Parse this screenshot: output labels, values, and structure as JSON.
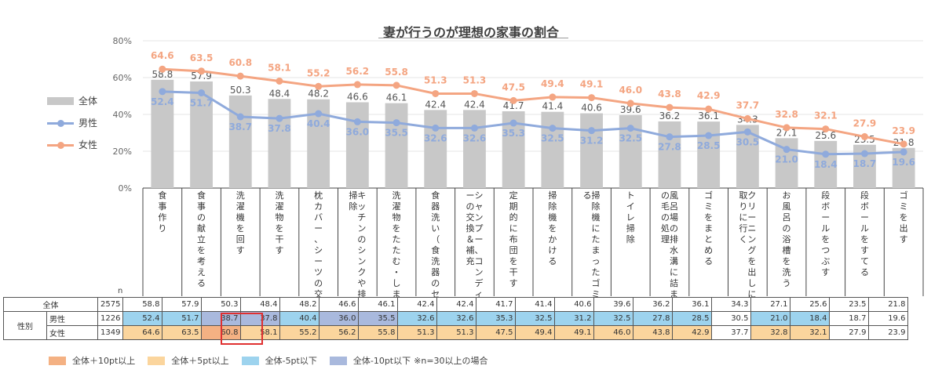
{
  "chart_data": {
    "type": "bar",
    "title": "妻が行うのが理想の家事の割合",
    "ylim": [
      0,
      80
    ],
    "yticks": [
      "0%",
      "20%",
      "40%",
      "60%",
      "80%"
    ],
    "categories": [
      "食事作り",
      "食事の献立を考える",
      "洗濯機を回す",
      "洗濯物を干す",
      "枕カバー、シーツの交換",
      "キッチンのシンクや排水溝の掃除",
      "洗濯物をたたむ・しまう",
      "食器洗い（食洗器のセット）",
      "シャンプー、コンディショナーの交換＆補充",
      "定期的に布団を干す",
      "掃除機をかける",
      "掃除機にたまったゴミを捨てる",
      "トイレ掃除",
      "風呂場の排水溝に詰まった髪の毛の処理",
      "ゴミをまとめる",
      "クリーニングを出しに行く、取りに行く",
      "お風呂の浴槽を洗う",
      "段ボールをつぶす",
      "段ボールをすてる",
      "ゴミを出す"
    ],
    "cat_labels": [
      "食\n事\n作\nり",
      "食\n事\nの\n献\n立\nを\n考\nえ\nる",
      "洗\n濯\n機\nを\n回\nす",
      "洗\n濯\n物\nを\n干\nす",
      "枕\nカ\nバ\nー\n、\nシ\nー\nツ\nの\n交\n換",
      "キ\nッ\nチ\nン\nの\nシ\nン\nク\nや\n排\n水\n溝\nの\n掃\n除",
      "洗\n濯\n物\nを\nた\nた\nむ\n・\nし\nま\nう",
      "食\n器\n洗\nい\n（\n食\n洗\n器\nの\nセ\nッ\nト\n）",
      "シ\nャ\nン\nプ\nー\n、\nコ\nン\nデ\nィ\nシ\nョ\nナ\nー\nの\n交\n換\n＆\n補\n充",
      "定\n期\n的\nに\n布\n団\nを\n干\nす",
      "掃\n除\n機\nを\nか\nけ\nる",
      "掃\n除\n機\nに\nた\nま\nっ\nた\nゴ\nミ\nを\n捨\nて\nる",
      "ト\nイ\nレ\n掃\n除",
      "風\n呂\n場\nの\n排\n水\n溝\nに\n詰\nま\nっ\nた\n髪\nの\n毛\nの\n処\n理",
      "ゴ\nミ\nを\nま\nと\nめ\nる",
      "ク\nリ\nー\nニ\nン\nグ\nを\n出\nし\nに\n行\nく\n、\n取\nり\nに\n行\nく",
      "お\n風\n呂\nの\n浴\n槽\nを\n洗\nう",
      "段\nボ\nー\nル\nを\nつ\nぶ\nす",
      "段\nボ\nー\nル\nを\nす\nて\nる",
      "ゴ\nミ\nを\n出\nす"
    ],
    "series": [
      {
        "name": "全体",
        "type": "bar",
        "color": "#c8c8c8",
        "values": [
          58.8,
          57.9,
          50.3,
          48.4,
          48.2,
          46.6,
          46.1,
          42.4,
          42.4,
          41.7,
          41.4,
          40.6,
          39.6,
          36.2,
          36.1,
          34.3,
          27.1,
          25.6,
          23.5,
          21.8
        ]
      },
      {
        "name": "男性",
        "type": "line",
        "color": "#8faadc",
        "values": [
          52.4,
          51.7,
          38.7,
          37.8,
          40.4,
          36.0,
          35.5,
          32.6,
          32.6,
          35.3,
          32.5,
          31.2,
          32.5,
          27.8,
          28.5,
          30.5,
          21.0,
          18.4,
          18.7,
          19.6
        ]
      },
      {
        "name": "女性",
        "type": "line",
        "color": "#f4a582",
        "values": [
          64.6,
          63.5,
          60.8,
          58.1,
          55.2,
          56.2,
          55.8,
          51.3,
          51.3,
          47.5,
          49.4,
          49.1,
          46.0,
          43.8,
          42.9,
          37.7,
          32.8,
          32.1,
          27.9,
          23.9
        ]
      }
    ],
    "legend_position": "left",
    "grid": true
  },
  "table": {
    "n_label": "n",
    "group_label": "性別",
    "rows": [
      {
        "label": "全体",
        "n": "2575",
        "values": [
          "58.8",
          "57.9",
          "50.3",
          "48.4",
          "48.2",
          "46.6",
          "46.1",
          "42.4",
          "42.4",
          "41.7",
          "41.4",
          "40.6",
          "39.6",
          "36.2",
          "36.1",
          "34.3",
          "27.1",
          "25.6",
          "23.5",
          "21.8"
        ],
        "colors": [
          "",
          "",
          "",
          "",
          "",
          "",
          "",
          "",
          "",
          "",
          "",
          "",
          "",
          "",
          "",
          "",
          "",
          "",
          "",
          ""
        ]
      },
      {
        "label": "男性",
        "n": "1226",
        "values": [
          "52.4",
          "51.7",
          "38.7",
          "37.8",
          "40.4",
          "36.0",
          "35.5",
          "32.6",
          "32.6",
          "35.3",
          "32.5",
          "31.2",
          "32.5",
          "27.8",
          "28.5",
          "30.5",
          "21.0",
          "18.4",
          "18.7",
          "19.6"
        ],
        "colors": [
          "b",
          "b",
          "d",
          "d",
          "b",
          "d",
          "d",
          "b",
          "b",
          "b",
          "b",
          "b",
          "b",
          "b",
          "b",
          "",
          "b",
          "b",
          "",
          ""
        ]
      },
      {
        "label": "女性",
        "n": "1349",
        "values": [
          "64.6",
          "63.5",
          "60.8",
          "58.1",
          "55.2",
          "56.2",
          "55.8",
          "51.3",
          "51.3",
          "47.5",
          "49.4",
          "49.1",
          "46.0",
          "43.8",
          "42.9",
          "37.7",
          "32.8",
          "32.1",
          "27.9",
          "23.9"
        ],
        "colors": [
          "y",
          "y",
          "o",
          "y",
          "y",
          "y",
          "y",
          "y",
          "y",
          "y",
          "y",
          "y",
          "y",
          "y",
          "y",
          "",
          "y",
          "y",
          "",
          ""
        ]
      }
    ]
  },
  "legend_bottom": {
    "items": [
      {
        "label": "全体＋10pt以上",
        "color": "#f4b183"
      },
      {
        "label": "全体＋5pt以上",
        "color": "#fbd59d"
      },
      {
        "label": "全体-5pt以下",
        "color": "#9dd3ee"
      },
      {
        "label": "全体-10pt以下",
        "color": "#a9b9dd"
      }
    ],
    "note": "※n=30以上の場合"
  }
}
